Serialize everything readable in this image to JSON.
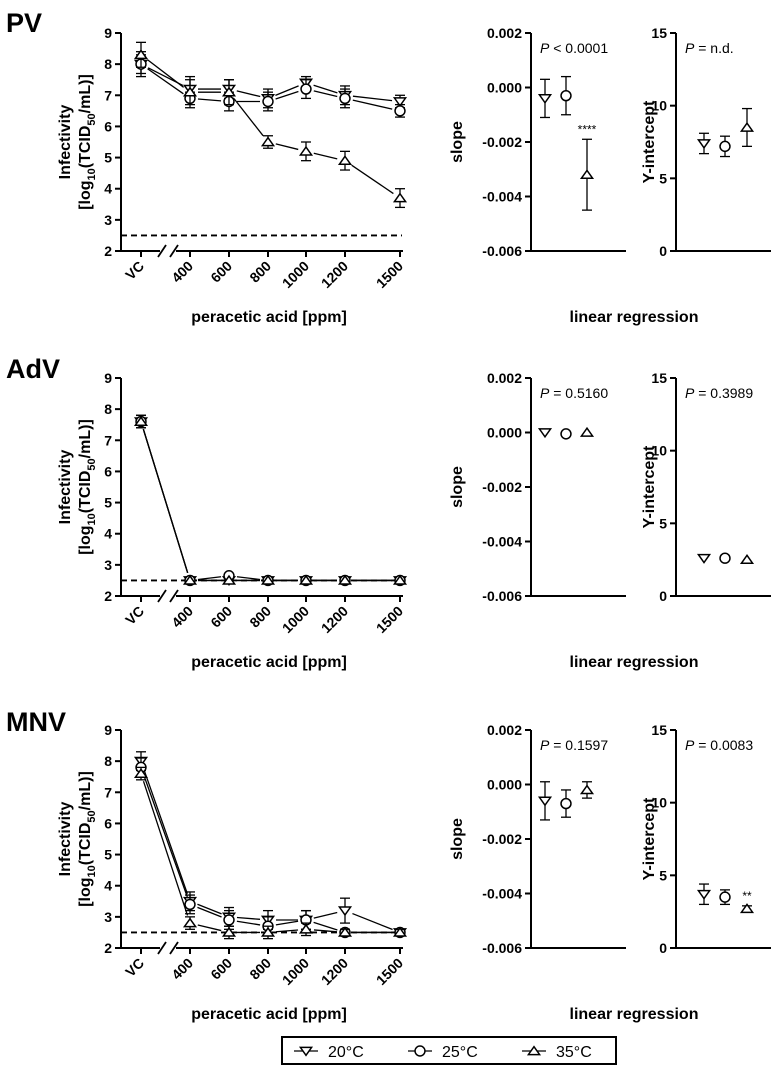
{
  "chart_data": [
    {
      "panel": "PV",
      "type": "line",
      "ylabel_top": "Infectivity",
      "ylabel_bottom": [
        "[log",
        "10",
        "(TCID",
        "50",
        "/mL)]"
      ],
      "xlabel": "peracetic acid [ppm]",
      "x_ticks": [
        "VC",
        "400",
        "600",
        "800",
        "1000",
        "1200",
        "1500"
      ],
      "y_ticks": [
        "2",
        "3",
        "4",
        "5",
        "6",
        "7",
        "8",
        "9"
      ],
      "ylim": [
        2,
        9
      ],
      "detection_limit": 2.5,
      "series": [
        {
          "name": "20°C",
          "marker": "tri-down",
          "x": [
            "VC",
            "400",
            "600",
            "800",
            "1000",
            "1200",
            "1500"
          ],
          "y": [
            8.0,
            7.2,
            7.2,
            6.9,
            7.4,
            7.0,
            6.8
          ],
          "err": [
            0.4,
            0.3,
            0.3,
            0.3,
            0.2,
            0.3,
            0.2
          ]
        },
        {
          "name": "25°C",
          "marker": "circle",
          "x": [
            "VC",
            "400",
            "600",
            "800",
            "1000",
            "1200",
            "1500"
          ],
          "y": [
            8.0,
            6.9,
            6.8,
            6.8,
            7.2,
            6.9,
            6.5
          ],
          "err": [
            0.3,
            0.2,
            0.3,
            0.3,
            0.3,
            0.3,
            0.2
          ]
        },
        {
          "name": "35°C",
          "marker": "tri-up",
          "x": [
            "VC",
            "400",
            "600",
            "800",
            "1000",
            "1200",
            "1500"
          ],
          "y": [
            8.3,
            7.1,
            7.1,
            5.5,
            5.2,
            4.9,
            3.7
          ],
          "err": [
            0.4,
            0.5,
            0.4,
            0.2,
            0.3,
            0.3,
            0.3
          ]
        }
      ]
    },
    {
      "panel": "PV",
      "type": "scatter",
      "ylabel": "slope",
      "xlabel": "linear regression",
      "y_ticks": [
        "0.002",
        "0.000",
        "-0.002",
        "-0.004",
        "-0.006"
      ],
      "ylim": [
        -0.006,
        0.002
      ],
      "annotation": {
        "p": "P",
        "text": " < 0.0001"
      },
      "stars": [
        "",
        "",
        "****"
      ],
      "points": [
        {
          "marker": "tri-down",
          "y": -0.0004,
          "err": 0.0007
        },
        {
          "marker": "circle",
          "y": -0.0003,
          "err": 0.0007
        },
        {
          "marker": "tri-up",
          "y": -0.0032,
          "err": 0.0013
        }
      ]
    },
    {
      "panel": "PV",
      "type": "scatter",
      "ylabel": "Y-intercept",
      "y_ticks": [
        "15",
        "10",
        "5",
        "0"
      ],
      "ylim": [
        0,
        15
      ],
      "annotation": {
        "p": "P",
        "text": " = n.d."
      },
      "stars": [
        "",
        "",
        ""
      ],
      "points": [
        {
          "marker": "tri-down",
          "y": 7.4,
          "err": 0.7
        },
        {
          "marker": "circle",
          "y": 7.2,
          "err": 0.7
        },
        {
          "marker": "tri-up",
          "y": 8.5,
          "err": 1.3
        }
      ]
    },
    {
      "panel": "AdV",
      "type": "line",
      "ylabel_top": "Infectivity",
      "ylabel_bottom": [
        "[log",
        "10",
        "(TCID",
        "50",
        "/mL)]"
      ],
      "xlabel": "peracetic acid [ppm]",
      "x_ticks": [
        "VC",
        "400",
        "600",
        "800",
        "1000",
        "1200",
        "1500"
      ],
      "y_ticks": [
        "2",
        "3",
        "4",
        "5",
        "6",
        "7",
        "8",
        "9"
      ],
      "ylim": [
        2,
        9
      ],
      "detection_limit": 2.5,
      "series": [
        {
          "name": "20°C",
          "marker": "tri-down",
          "x": [
            "VC",
            "400",
            "600",
            "800",
            "1000",
            "1200",
            "1500"
          ],
          "y": [
            7.6,
            2.5,
            2.5,
            2.5,
            2.5,
            2.5,
            2.5
          ],
          "err": [
            0.2,
            0,
            0,
            0,
            0,
            0,
            0
          ]
        },
        {
          "name": "25°C",
          "marker": "circle",
          "x": [
            "VC",
            "400",
            "600",
            "800",
            "1000",
            "1200",
            "1500"
          ],
          "y": [
            7.6,
            2.5,
            2.65,
            2.5,
            2.5,
            2.5,
            2.5
          ],
          "err": [
            0.2,
            0,
            0,
            0,
            0,
            0,
            0
          ]
        },
        {
          "name": "35°C",
          "marker": "tri-up",
          "x": [
            "VC",
            "400",
            "600",
            "800",
            "1000",
            "1200",
            "1500"
          ],
          "y": [
            7.6,
            2.5,
            2.5,
            2.5,
            2.5,
            2.5,
            2.5
          ],
          "err": [
            0.2,
            0,
            0,
            0,
            0,
            0,
            0
          ]
        }
      ]
    },
    {
      "panel": "AdV",
      "type": "scatter",
      "ylabel": "slope",
      "xlabel": "linear regression",
      "y_ticks": [
        "0.002",
        "0.000",
        "-0.002",
        "-0.004",
        "-0.006"
      ],
      "ylim": [
        -0.006,
        0.002
      ],
      "annotation": {
        "p": "P",
        "text": " = 0.5160"
      },
      "stars": [
        "",
        "",
        ""
      ],
      "points": [
        {
          "marker": "tri-down",
          "y": 0.0,
          "err": 0
        },
        {
          "marker": "circle",
          "y": -5e-05,
          "err": 0
        },
        {
          "marker": "tri-up",
          "y": 0.0,
          "err": 0
        }
      ]
    },
    {
      "panel": "AdV",
      "type": "scatter",
      "ylabel": "Y-intercept",
      "y_ticks": [
        "15",
        "10",
        "5",
        "0"
      ],
      "ylim": [
        0,
        15
      ],
      "annotation": {
        "p": "P",
        "text": " = 0.3989"
      },
      "stars": [
        "",
        "",
        ""
      ],
      "points": [
        {
          "marker": "tri-down",
          "y": 2.6,
          "err": 0
        },
        {
          "marker": "circle",
          "y": 2.6,
          "err": 0
        },
        {
          "marker": "tri-up",
          "y": 2.5,
          "err": 0
        }
      ]
    },
    {
      "panel": "MNV",
      "type": "line",
      "ylabel_top": "Infectivity",
      "ylabel_bottom": [
        "[log",
        "10",
        "(TCID",
        "50",
        "/mL)]"
      ],
      "xlabel": "peracetic acid [ppm]",
      "x_ticks": [
        "VC",
        "400",
        "600",
        "800",
        "1000",
        "1200",
        "1500"
      ],
      "y_ticks": [
        "2",
        "3",
        "4",
        "5",
        "6",
        "7",
        "8",
        "9"
      ],
      "ylim": [
        2,
        9
      ],
      "detection_limit": 2.5,
      "series": [
        {
          "name": "20°C",
          "marker": "tri-down",
          "x": [
            "VC",
            "400",
            "600",
            "800",
            "1000",
            "1200",
            "1500"
          ],
          "y": [
            8.0,
            3.5,
            3.0,
            2.9,
            2.9,
            3.2,
            2.5
          ],
          "err": [
            0.3,
            0.3,
            0.3,
            0.3,
            0.3,
            0.4,
            0.1
          ]
        },
        {
          "name": "25°C",
          "marker": "circle",
          "x": [
            "VC",
            "400",
            "600",
            "800",
            "1000",
            "1200",
            "1500"
          ],
          "y": [
            7.8,
            3.4,
            2.9,
            2.7,
            2.9,
            2.5,
            2.5
          ],
          "err": [
            0.3,
            0.3,
            0.3,
            0.3,
            0.3,
            0.1,
            0.1
          ]
        },
        {
          "name": "35°C",
          "marker": "tri-up",
          "x": [
            "VC",
            "400",
            "600",
            "800",
            "1000",
            "1200",
            "1500"
          ],
          "y": [
            7.6,
            2.8,
            2.5,
            2.5,
            2.6,
            2.5,
            2.5
          ],
          "err": [
            0.2,
            0.2,
            0.2,
            0.2,
            0.2,
            0.1,
            0.1
          ]
        }
      ]
    },
    {
      "panel": "MNV",
      "type": "scatter",
      "ylabel": "slope",
      "xlabel": "linear regression",
      "y_ticks": [
        "0.002",
        "0.000",
        "-0.002",
        "-0.004",
        "-0.006"
      ],
      "ylim": [
        -0.006,
        0.002
      ],
      "annotation": {
        "p": "P",
        "text": " = 0.1597"
      },
      "stars": [
        "",
        "",
        ""
      ],
      "points": [
        {
          "marker": "tri-down",
          "y": -0.0006,
          "err": 0.0007
        },
        {
          "marker": "circle",
          "y": -0.0007,
          "err": 0.0005
        },
        {
          "marker": "tri-up",
          "y": -0.0002,
          "err": 0.0003
        }
      ]
    },
    {
      "panel": "MNV",
      "type": "scatter",
      "ylabel": "Y-intercept",
      "y_ticks": [
        "15",
        "10",
        "5",
        "0"
      ],
      "ylim": [
        0,
        15
      ],
      "annotation": {
        "p": "P",
        "text": " = 0.0083"
      },
      "stars": [
        "",
        "",
        "**"
      ],
      "points": [
        {
          "marker": "tri-down",
          "y": 3.7,
          "err": 0.7
        },
        {
          "marker": "circle",
          "y": 3.5,
          "err": 0.5
        },
        {
          "marker": "tri-up",
          "y": 2.7,
          "err": 0.2
        }
      ]
    }
  ],
  "legend": [
    {
      "label": "20°C",
      "marker": "tri-down"
    },
    {
      "label": "25°C",
      "marker": "circle"
    },
    {
      "label": "35°C",
      "marker": "tri-up"
    }
  ],
  "colors": {
    "ink": "#000000",
    "background": "#ffffff"
  }
}
